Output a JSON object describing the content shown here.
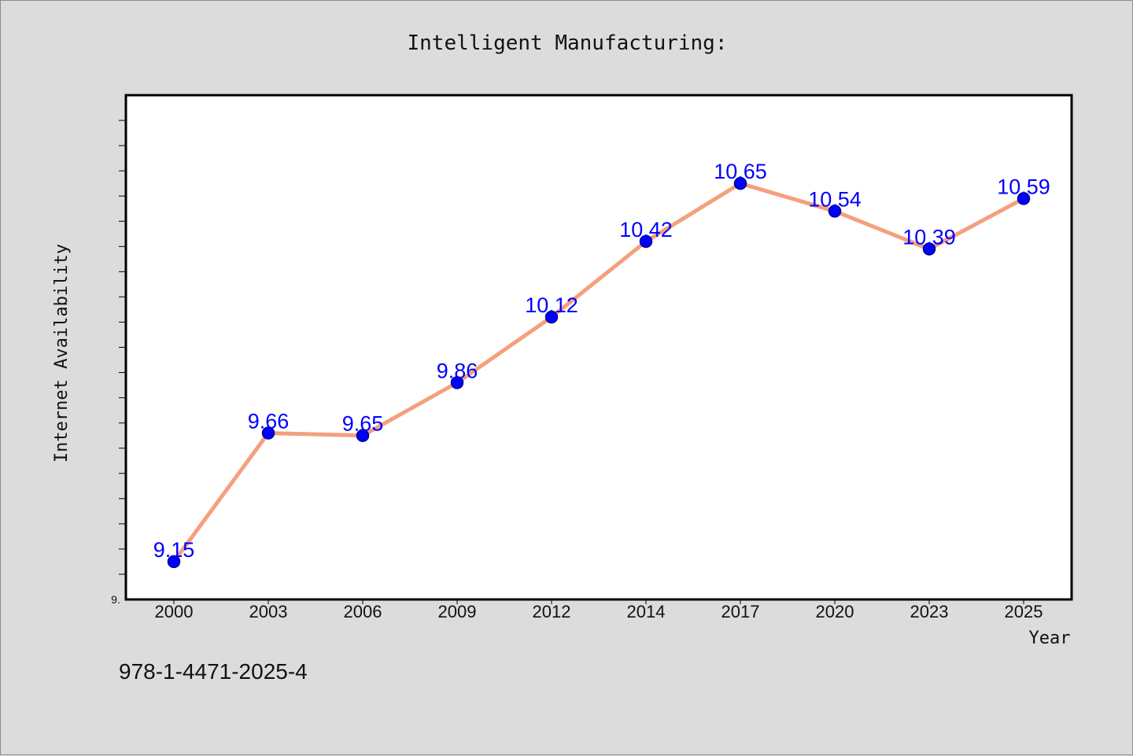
{
  "chart_data": {
    "type": "line",
    "title": "Intelligent Manufacturing:",
    "xlabel": "Year",
    "ylabel": "Internet Availability",
    "categories": [
      "2000",
      "2003",
      "2006",
      "2009",
      "2012",
      "2014",
      "2017",
      "2020",
      "2023",
      "2025"
    ],
    "series": [
      {
        "values": [
          9.15,
          9.66,
          9.65,
          9.86,
          10.12,
          10.42,
          10.65,
          10.54,
          10.39,
          10.59
        ],
        "data_labels": [
          "9.15",
          "9.66",
          "9.65",
          "9.86",
          "10.12",
          "10.42",
          "10.65",
          "10.54",
          "10.39",
          "10.59"
        ]
      }
    ],
    "ylim": [
      9.0,
      11.0
    ],
    "y_tick_label_shown": "9.",
    "grid": false,
    "legend": "none",
    "colors": {
      "line": "#f4a07e",
      "marker_fill": "#0000ff",
      "marker_edge": "#00008b",
      "data_label": "#0000ff",
      "background": "#dcdcdc",
      "plot_background": "#ffffff"
    }
  },
  "footnote": "978-1-4471-2025-4"
}
